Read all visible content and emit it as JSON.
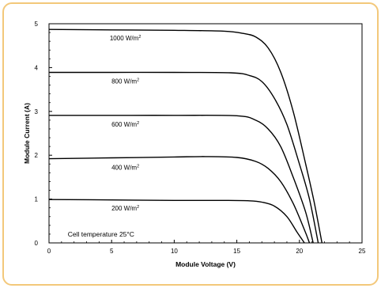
{
  "chart_data": {
    "type": "line",
    "title": "",
    "xlabel": "Module Voltage (V)",
    "ylabel": "Module Current (A)",
    "xlim": [
      0,
      25
    ],
    "ylim": [
      0,
      5
    ],
    "xticks": [
      0,
      5,
      10,
      15,
      20,
      25
    ],
    "yticks": [
      0,
      1,
      2,
      3,
      4,
      5
    ],
    "grid": false,
    "legend": "none",
    "annotations": [
      "Cell temperature 25°C"
    ],
    "series": [
      {
        "name": "1000 W/m²",
        "label": "1000 W/m",
        "sup": "2",
        "points": [
          [
            0,
            4.87
          ],
          [
            5,
            4.86
          ],
          [
            10,
            4.85
          ],
          [
            14,
            4.83
          ],
          [
            15.5,
            4.78
          ],
          [
            16.5,
            4.7
          ],
          [
            17.5,
            4.45
          ],
          [
            18.5,
            3.9
          ],
          [
            19.5,
            3.0
          ],
          [
            20.5,
            1.8
          ],
          [
            21.2,
            0.9
          ],
          [
            21.8,
            0
          ]
        ]
      },
      {
        "name": "800 W/m²",
        "label": "800 W/m",
        "sup": "2",
        "points": [
          [
            0,
            3.89
          ],
          [
            5,
            3.89
          ],
          [
            10,
            3.89
          ],
          [
            14.5,
            3.88
          ],
          [
            16,
            3.82
          ],
          [
            17,
            3.68
          ],
          [
            18,
            3.3
          ],
          [
            19,
            2.7
          ],
          [
            20,
            1.8
          ],
          [
            20.8,
            1.0
          ],
          [
            21.5,
            0
          ]
        ]
      },
      {
        "name": "600 W/m²",
        "label": "600 W/m",
        "sup": "2",
        "points": [
          [
            0,
            2.91
          ],
          [
            5,
            2.91
          ],
          [
            10,
            2.91
          ],
          [
            15,
            2.9
          ],
          [
            16.5,
            2.8
          ],
          [
            17.5,
            2.6
          ],
          [
            18.5,
            2.2
          ],
          [
            19.5,
            1.5
          ],
          [
            20.5,
            0.7
          ],
          [
            21.1,
            0
          ]
        ]
      },
      {
        "name": "400 W/m²",
        "label": "400 W/m",
        "sup": "2",
        "points": [
          [
            0,
            1.92
          ],
          [
            5,
            1.94
          ],
          [
            10,
            1.96
          ],
          [
            12.5,
            1.97
          ],
          [
            15,
            1.95
          ],
          [
            16.5,
            1.86
          ],
          [
            17.5,
            1.7
          ],
          [
            18.5,
            1.4
          ],
          [
            19.5,
            0.9
          ],
          [
            20.4,
            0.3
          ],
          [
            20.8,
            0
          ]
        ]
      },
      {
        "name": "200 W/m²",
        "label": "200 W/m",
        "sup": "2",
        "points": [
          [
            0,
            0.99
          ],
          [
            5,
            0.98
          ],
          [
            10,
            0.97
          ],
          [
            14,
            0.97
          ],
          [
            16,
            0.96
          ],
          [
            17,
            0.93
          ],
          [
            18,
            0.84
          ],
          [
            19,
            0.6
          ],
          [
            19.8,
            0.25
          ],
          [
            20.4,
            0
          ]
        ]
      }
    ]
  }
}
